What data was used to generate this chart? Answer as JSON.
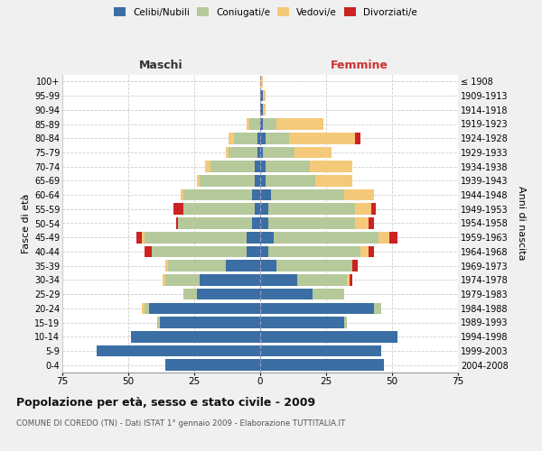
{
  "age_groups": [
    "0-4",
    "5-9",
    "10-14",
    "15-19",
    "20-24",
    "25-29",
    "30-34",
    "35-39",
    "40-44",
    "45-49",
    "50-54",
    "55-59",
    "60-64",
    "65-69",
    "70-74",
    "75-79",
    "80-84",
    "85-89",
    "90-94",
    "95-99",
    "100+"
  ],
  "birth_years": [
    "2004-2008",
    "1999-2003",
    "1994-1998",
    "1989-1993",
    "1984-1988",
    "1979-1983",
    "1974-1978",
    "1969-1973",
    "1964-1968",
    "1959-1963",
    "1954-1958",
    "1949-1953",
    "1944-1948",
    "1939-1943",
    "1934-1938",
    "1929-1933",
    "1924-1928",
    "1919-1923",
    "1914-1918",
    "1909-1913",
    "≤ 1908"
  ],
  "colors": {
    "celibi": "#3a6ea5",
    "coniugati": "#b5c99a",
    "vedovi": "#f5c97a",
    "divorziati": "#cc2222"
  },
  "male": {
    "celibi": [
      36,
      62,
      49,
      38,
      42,
      24,
      23,
      13,
      5,
      5,
      3,
      2,
      3,
      2,
      2,
      1,
      1,
      0,
      0,
      0,
      0
    ],
    "coniugati": [
      0,
      0,
      0,
      1,
      2,
      5,
      13,
      22,
      36,
      39,
      28,
      27,
      26,
      21,
      17,
      11,
      9,
      4,
      0,
      0,
      0
    ],
    "vedovi": [
      0,
      0,
      0,
      0,
      1,
      0,
      1,
      1,
      0,
      1,
      0,
      0,
      1,
      1,
      2,
      1,
      2,
      1,
      0,
      0,
      0
    ],
    "divorziati": [
      0,
      0,
      0,
      0,
      0,
      0,
      0,
      0,
      3,
      2,
      1,
      4,
      0,
      0,
      0,
      0,
      0,
      0,
      0,
      0,
      0
    ]
  },
  "female": {
    "nubili": [
      47,
      46,
      52,
      32,
      43,
      20,
      14,
      6,
      3,
      5,
      3,
      3,
      4,
      2,
      2,
      1,
      2,
      1,
      1,
      1,
      0
    ],
    "coniugate": [
      0,
      0,
      0,
      1,
      3,
      12,
      19,
      29,
      35,
      40,
      33,
      33,
      28,
      19,
      17,
      12,
      9,
      5,
      0,
      0,
      0
    ],
    "vedove": [
      0,
      0,
      0,
      0,
      0,
      0,
      1,
      0,
      3,
      4,
      5,
      6,
      11,
      14,
      16,
      14,
      25,
      18,
      1,
      1,
      1
    ],
    "divorziate": [
      0,
      0,
      0,
      0,
      0,
      0,
      1,
      2,
      2,
      3,
      2,
      2,
      0,
      0,
      0,
      0,
      2,
      0,
      0,
      0,
      0
    ]
  },
  "xlim": 75,
  "title": "Popolazione per età, sesso e stato civile - 2009",
  "subtitle": "COMUNE DI COREDO (TN) - Dati ISTAT 1° gennaio 2009 - Elaborazione TUTTITALIA.IT",
  "ylabel_left": "Fasce di età",
  "ylabel_right": "Anni di nascita",
  "xlabel_left": "Maschi",
  "xlabel_right": "Femmine",
  "bg_color": "#f0f0f0",
  "plot_bg": "#ffffff",
  "grid_color": "#cccccc"
}
